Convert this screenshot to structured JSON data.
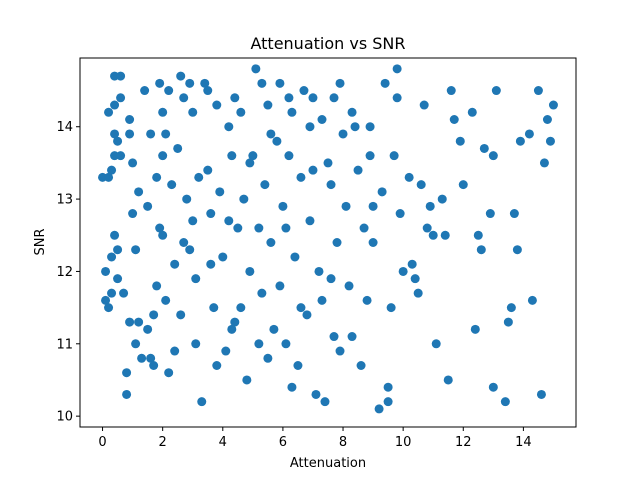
{
  "chart_data": {
    "type": "scatter",
    "title": "Attenuation vs SNR",
    "xlabel": "Attenuation",
    "ylabel": "SNR",
    "xlim": [
      -0.75,
      15.75
    ],
    "ylim": [
      9.85,
      14.95
    ],
    "xticks": [
      0,
      2,
      4,
      6,
      8,
      10,
      12,
      14
    ],
    "yticks": [
      10,
      11,
      12,
      13,
      14
    ],
    "grid": false,
    "marker_color": "#1f77b4",
    "series": [
      {
        "points": [
          [
            0.0,
            13.3
          ],
          [
            0.1,
            12.0
          ],
          [
            0.1,
            11.6
          ],
          [
            0.2,
            14.2
          ],
          [
            0.2,
            13.3
          ],
          [
            0.2,
            11.5
          ],
          [
            0.3,
            13.4
          ],
          [
            0.3,
            11.7
          ],
          [
            0.4,
            14.7
          ],
          [
            0.4,
            14.3
          ],
          [
            0.4,
            13.9
          ],
          [
            0.4,
            13.6
          ],
          [
            0.4,
            12.5
          ],
          [
            0.5,
            13.8
          ],
          [
            0.5,
            12.3
          ],
          [
            0.5,
            11.9
          ],
          [
            0.6,
            14.7
          ],
          [
            0.6,
            14.4
          ],
          [
            0.6,
            13.6
          ],
          [
            0.7,
            11.7
          ],
          [
            0.8,
            10.3
          ],
          [
            0.8,
            10.6
          ],
          [
            0.9,
            13.9
          ],
          [
            0.9,
            11.3
          ],
          [
            1.0,
            13.5
          ],
          [
            1.1,
            11.0
          ],
          [
            1.1,
            12.3
          ],
          [
            1.2,
            11.3
          ],
          [
            1.3,
            10.8
          ],
          [
            1.4,
            14.5
          ],
          [
            1.5,
            12.9
          ],
          [
            1.5,
            11.2
          ],
          [
            1.6,
            13.9
          ],
          [
            1.6,
            10.8
          ],
          [
            1.7,
            10.7
          ],
          [
            1.8,
            11.8
          ],
          [
            1.8,
            13.3
          ],
          [
            1.9,
            12.6
          ],
          [
            2.0,
            14.2
          ],
          [
            2.0,
            13.6
          ],
          [
            2.0,
            12.5
          ],
          [
            2.1,
            11.6
          ],
          [
            2.2,
            10.6
          ],
          [
            2.2,
            14.5
          ],
          [
            2.3,
            13.2
          ],
          [
            2.4,
            12.1
          ],
          [
            2.5,
            13.7
          ],
          [
            2.6,
            14.7
          ],
          [
            2.6,
            11.4
          ],
          [
            2.7,
            12.4
          ],
          [
            2.8,
            13.0
          ],
          [
            2.9,
            14.6
          ],
          [
            3.0,
            14.2
          ],
          [
            3.0,
            12.7
          ],
          [
            3.1,
            11.9
          ],
          [
            3.2,
            13.3
          ],
          [
            3.3,
            10.2
          ],
          [
            3.4,
            14.6
          ],
          [
            3.5,
            13.4
          ],
          [
            3.6,
            12.8
          ],
          [
            3.7,
            11.5
          ],
          [
            3.8,
            14.3
          ],
          [
            3.9,
            13.1
          ],
          [
            4.0,
            12.2
          ],
          [
            4.1,
            10.9
          ],
          [
            4.2,
            14.0
          ],
          [
            4.3,
            13.6
          ],
          [
            4.4,
            11.3
          ],
          [
            4.5,
            12.6
          ],
          [
            4.6,
            14.2
          ],
          [
            4.7,
            13.0
          ],
          [
            4.8,
            10.5
          ],
          [
            4.9,
            12.0
          ],
          [
            5.0,
            13.6
          ],
          [
            5.1,
            14.8
          ],
          [
            5.2,
            12.6
          ],
          [
            5.3,
            11.7
          ],
          [
            5.4,
            13.2
          ],
          [
            5.5,
            14.3
          ],
          [
            5.6,
            12.4
          ],
          [
            5.7,
            11.2
          ],
          [
            5.8,
            13.8
          ],
          [
            5.9,
            14.6
          ],
          [
            6.0,
            12.9
          ],
          [
            6.1,
            11.0
          ],
          [
            6.2,
            13.6
          ],
          [
            6.3,
            14.2
          ],
          [
            6.4,
            12.2
          ],
          [
            6.5,
            10.7
          ],
          [
            6.6,
            13.3
          ],
          [
            6.7,
            14.5
          ],
          [
            6.8,
            11.4
          ],
          [
            6.9,
            12.7
          ],
          [
            7.0,
            13.4
          ],
          [
            7.1,
            10.3
          ],
          [
            7.2,
            12.0
          ],
          [
            7.3,
            14.1
          ],
          [
            7.4,
            10.2
          ],
          [
            7.5,
            13.5
          ],
          [
            7.6,
            11.9
          ],
          [
            7.7,
            14.4
          ],
          [
            7.8,
            12.4
          ],
          [
            7.9,
            10.9
          ],
          [
            8.0,
            13.9
          ],
          [
            8.1,
            12.9
          ],
          [
            8.2,
            11.8
          ],
          [
            8.3,
            14.2
          ],
          [
            8.5,
            13.4
          ],
          [
            8.6,
            10.7
          ],
          [
            8.7,
            12.6
          ],
          [
            8.9,
            13.6
          ],
          [
            9.0,
            12.4
          ],
          [
            9.2,
            10.1
          ],
          [
            9.3,
            13.1
          ],
          [
            9.4,
            14.6
          ],
          [
            9.5,
            10.4
          ],
          [
            9.6,
            11.5
          ],
          [
            9.8,
            14.8
          ],
          [
            9.9,
            12.8
          ],
          [
            10.0,
            12.0
          ],
          [
            10.2,
            13.3
          ],
          [
            10.4,
            11.9
          ],
          [
            10.5,
            11.7
          ],
          [
            10.6,
            13.2
          ],
          [
            10.7,
            14.3
          ],
          [
            10.9,
            12.9
          ],
          [
            11.0,
            12.5
          ],
          [
            11.1,
            11.0
          ],
          [
            11.3,
            13.0
          ],
          [
            11.5,
            10.5
          ],
          [
            11.6,
            14.5
          ],
          [
            11.7,
            14.1
          ],
          [
            11.9,
            13.8
          ],
          [
            12.0,
            13.2
          ],
          [
            12.3,
            14.2
          ],
          [
            12.4,
            11.2
          ],
          [
            12.5,
            12.5
          ],
          [
            12.6,
            12.3
          ],
          [
            12.7,
            13.7
          ],
          [
            12.9,
            12.8
          ],
          [
            13.0,
            10.4
          ],
          [
            13.0,
            13.6
          ],
          [
            13.1,
            14.5
          ],
          [
            13.4,
            10.2
          ],
          [
            13.5,
            11.3
          ],
          [
            13.6,
            11.5
          ],
          [
            13.7,
            12.8
          ],
          [
            13.8,
            12.3
          ],
          [
            13.9,
            13.8
          ],
          [
            14.2,
            13.9
          ],
          [
            14.3,
            11.6
          ],
          [
            14.5,
            14.5
          ],
          [
            14.6,
            10.3
          ],
          [
            14.7,
            13.5
          ],
          [
            14.8,
            14.1
          ],
          [
            14.9,
            13.8
          ],
          [
            15.0,
            14.3
          ],
          [
            0.3,
            12.2
          ],
          [
            1.0,
            12.8
          ],
          [
            1.7,
            11.4
          ],
          [
            2.4,
            10.9
          ],
          [
            3.1,
            11.0
          ],
          [
            3.8,
            10.7
          ],
          [
            4.3,
            11.2
          ],
          [
            4.6,
            11.5
          ],
          [
            5.2,
            11.0
          ],
          [
            5.5,
            10.8
          ],
          [
            5.9,
            11.8
          ],
          [
            6.3,
            10.4
          ],
          [
            6.6,
            11.5
          ],
          [
            7.3,
            11.6
          ],
          [
            7.7,
            11.1
          ],
          [
            8.3,
            11.1
          ],
          [
            8.8,
            11.6
          ],
          [
            9.5,
            10.2
          ],
          [
            1.2,
            13.1
          ],
          [
            2.1,
            13.9
          ],
          [
            2.9,
            12.3
          ],
          [
            3.6,
            12.1
          ],
          [
            4.2,
            12.7
          ],
          [
            4.9,
            13.5
          ],
          [
            5.6,
            13.9
          ],
          [
            6.1,
            12.6
          ],
          [
            6.9,
            14.0
          ],
          [
            7.6,
            13.2
          ],
          [
            8.4,
            14.0
          ],
          [
            9.0,
            12.9
          ],
          [
            9.7,
            13.6
          ],
          [
            10.3,
            12.1
          ],
          [
            10.8,
            12.6
          ],
          [
            11.4,
            12.5
          ],
          [
            0.9,
            14.1
          ],
          [
            1.9,
            14.6
          ],
          [
            2.7,
            14.4
          ],
          [
            3.5,
            14.5
          ],
          [
            4.4,
            14.4
          ],
          [
            5.3,
            14.6
          ],
          [
            6.2,
            14.4
          ],
          [
            7.0,
            14.4
          ],
          [
            7.9,
            14.6
          ],
          [
            8.9,
            14.0
          ],
          [
            9.8,
            14.4
          ]
        ]
      }
    ]
  }
}
